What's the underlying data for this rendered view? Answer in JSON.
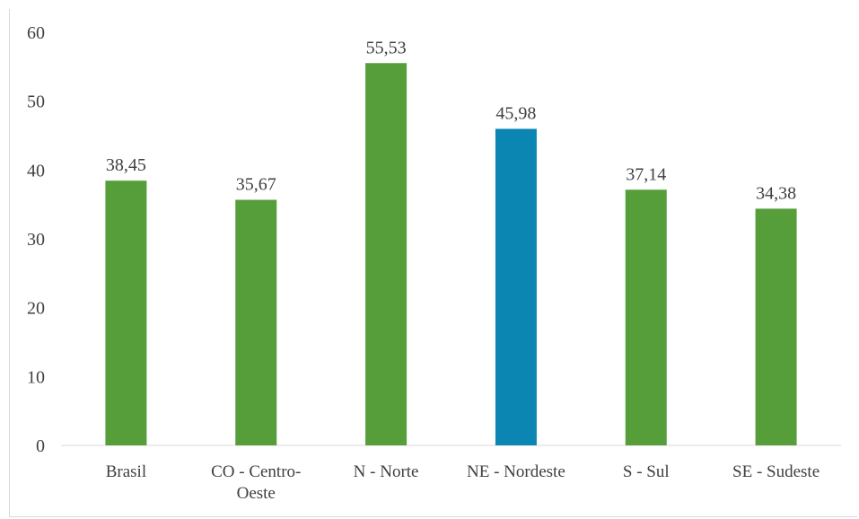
{
  "chart_data": {
    "type": "bar",
    "title": "",
    "xlabel": "",
    "ylabel": "",
    "categories": [
      "Brasil",
      "CO - Centro-Oeste",
      "N - Norte",
      "NE - Nordeste",
      "S - Sul",
      "SE - Sudeste"
    ],
    "category_lines": [
      [
        "Brasil"
      ],
      [
        "CO - Centro-",
        "Oeste"
      ],
      [
        "N - Norte"
      ],
      [
        "NE - Nordeste"
      ],
      [
        "S - Sul"
      ],
      [
        "SE - Sudeste"
      ]
    ],
    "values": [
      38.45,
      35.67,
      55.53,
      45.98,
      37.14,
      34.38
    ],
    "value_labels": [
      "38,45",
      "35,67",
      "55,53",
      "45,98",
      "37,14",
      "34,38"
    ],
    "bar_colors": [
      "#559e3a",
      "#559e3a",
      "#559e3a",
      "#0b86b2",
      "#559e3a",
      "#559e3a"
    ],
    "ylim": [
      0,
      60
    ],
    "yticks": [
      0,
      10,
      20,
      30,
      40,
      50,
      60
    ],
    "grid": false,
    "legend": "none"
  }
}
